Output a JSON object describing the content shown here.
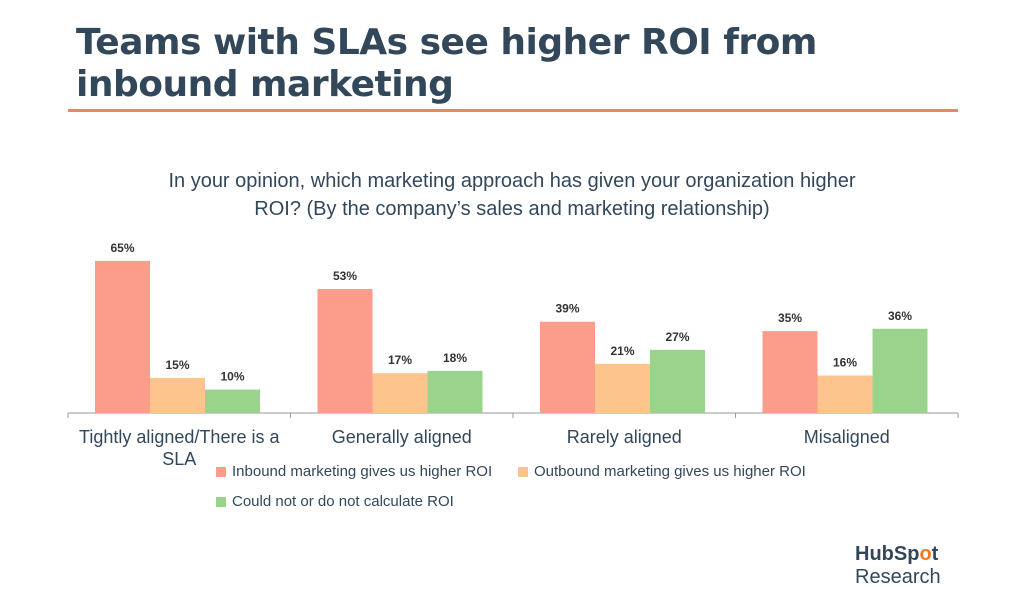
{
  "header": {
    "title": "Teams with SLAs see higher ROI from inbound marketing",
    "subtitle": "In your opinion, which marketing approach has given your organization higher ROI? (By the company’s sales and marketing relationship)"
  },
  "chart_data": {
    "type": "bar",
    "title": "In your opinion, which marketing approach has given your organization higher ROI? (By the company’s sales and marketing relationship)",
    "categories": [
      "Tightly aligned/There is a SLA",
      "Generally aligned",
      "Rarely aligned",
      "Misaligned"
    ],
    "series": [
      {
        "name": "Inbound marketing gives us higher ROI",
        "values": [
          65,
          53,
          39,
          35
        ],
        "color": "#fc9c8b"
      },
      {
        "name": "Outbound marketing gives us higher ROI",
        "values": [
          15,
          17,
          21,
          16
        ],
        "color": "#fdc48e"
      },
      {
        "name": "Could not or do not calculate ROI",
        "values": [
          10,
          18,
          27,
          36
        ],
        "color": "#9ad48c"
      }
    ],
    "value_suffix": "%",
    "ylim": [
      0,
      70
    ],
    "grid": false,
    "legend": "bottom"
  },
  "branding": {
    "logo_bold": "HubSp",
    "logo_o": "o",
    "logo_t": "t",
    "logo_suffix": " Research"
  }
}
